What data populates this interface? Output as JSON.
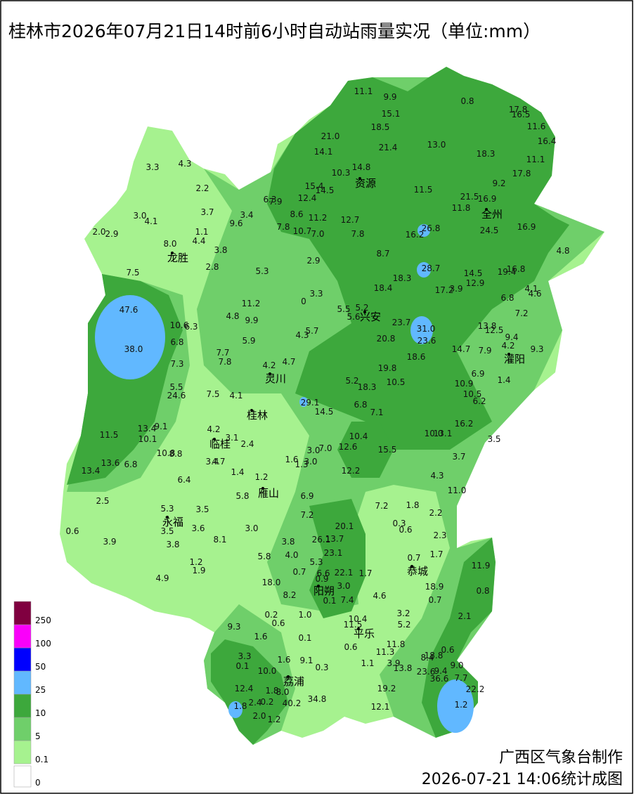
{
  "title": "桂林市2026年07月21日14时前6小时自动站雨量实况（单位:mm）",
  "legend": {
    "levels": [
      {
        "value": 0,
        "color": "#ffffff"
      },
      {
        "value": 0.1,
        "color": "#a6f28f"
      },
      {
        "value": 5,
        "color": "#6fcf6a"
      },
      {
        "value": 10,
        "color": "#3da83c"
      },
      {
        "value": 25,
        "color": "#61b8ff"
      },
      {
        "value": 50,
        "color": "#0000fe"
      },
      {
        "value": 100,
        "color": "#fa00fa"
      },
      {
        "value": 250,
        "color": "#800040"
      }
    ]
  },
  "counties": [
    "资源",
    "全州",
    "龙胜",
    "兴安",
    "灌阳",
    "灵川",
    "桂林",
    "临桂",
    "雁山",
    "永福",
    "阳朔",
    "恭城",
    "平乐",
    "荔浦"
  ],
  "stations": [
    "11.1",
    "9.9",
    "15.1",
    "18.5",
    "21.0",
    "14.1",
    "21.4",
    "10.3",
    "14.8",
    "15.4",
    "14.5",
    "12.4",
    "0.8",
    "17.8",
    "16.5",
    "11.6",
    "16.4",
    "13.0",
    "18.3",
    "11.1",
    "17.8",
    "9.2",
    "11.5",
    "21.5",
    "16.9",
    "11.8",
    "24.5",
    "16.9",
    "26.8",
    "16.2",
    "4.8",
    "3.3",
    "4.3",
    "2.2",
    "3.0",
    "4.1",
    "2.0",
    "2.9",
    "3.7",
    "1.1",
    "4.4",
    "8.0",
    "3.8",
    "2.8",
    "7.5",
    "6.3",
    "7.9",
    "3.4",
    "9.6",
    "8.6",
    "11.2",
    "12.7",
    "7.8",
    "10.7",
    "7.0",
    "7.8",
    "5.3",
    "2.9",
    "8.7",
    "28.7",
    "14.5",
    "19.4",
    "16.8",
    "12.9",
    "18.4",
    "18.3",
    "17.2",
    "3.9",
    "4.1",
    "4.6",
    "6.8",
    "7.2",
    "47.6",
    "11.2",
    "0",
    "3.3",
    "4.8",
    "9.9",
    "5.5",
    "5.2",
    "5.6",
    "23.7",
    "31.0",
    "13.8",
    "12.5",
    "9.4",
    "4.2",
    "9.3",
    "10.6",
    "6.3",
    "5.7",
    "4.3",
    "38.0",
    "6.8",
    "5.9",
    "20.8",
    "23.6",
    "14.7",
    "7.9",
    "7.7",
    "7.8",
    "4.7",
    "4.2",
    "7.3",
    "18.6",
    "19.8",
    "6.9",
    "1.4",
    "10.9",
    "10.5",
    "5.2",
    "18.3",
    "5.5",
    "10.5",
    "6.2",
    "24.6",
    "7.5",
    "4.1",
    "29.1",
    "14.5",
    "6.8",
    "7.1",
    "16.2",
    "13.4",
    "9.1",
    "4.2",
    "11.5",
    "10.1",
    "10.4",
    "10.0",
    "13.1",
    "3.5",
    "3.1",
    "10.8",
    "8.8",
    "2.4",
    "3.0",
    "7.0",
    "12.6",
    "15.5",
    "1.6",
    "1.3",
    "3.0",
    "3.7",
    "13.6",
    "6.8",
    "3.4",
    "4.7",
    "13.4",
    "1.4",
    "1.2",
    "12.2",
    "4.3",
    "6.4",
    "11.0",
    "2.5",
    "5.8",
    "6.9",
    "7.2",
    "1.8",
    "5.3",
    "3.5",
    "2.2",
    "7.2",
    "3.0",
    "20.1",
    "0.3",
    "0.6",
    "0.6",
    "3.6",
    "3.5",
    "2.3",
    "3.9",
    "3.8",
    "8.1",
    "3.8",
    "26.1",
    "13.7",
    "23.1",
    "4.0",
    "5.8",
    "0.7",
    "1.7",
    "5.3",
    "1.2",
    "1.9",
    "0.7",
    "6.6",
    "22.1",
    "1.7",
    "11.9",
    "0.9",
    "4.9",
    "18.0",
    "3.0",
    "18.9",
    "0.8",
    "8.2",
    "7.4",
    "0.1",
    "4.6",
    "0.7",
    "3.2",
    "0.2",
    "1.0",
    "10.4",
    "2.1",
    "0.6",
    "5.2",
    "9.3",
    "11.5",
    "1.6",
    "0.1",
    "11.8",
    "0.6",
    "0.6",
    "11.3",
    "3.3",
    "1.6",
    "9.1",
    "8.4",
    "18.8",
    "9.0",
    "0.1",
    "0.3",
    "1.1",
    "3.9",
    "13.8",
    "9.4",
    "23.6",
    "7.7",
    "10.0",
    "36.6",
    "22.2",
    "12.4",
    "1.8",
    "8.0",
    "19.2",
    "2.4",
    "0.2",
    "34.8",
    "1.8",
    "40.2",
    "1.2",
    "12.1",
    "2.0",
    "1.2"
  ],
  "footer": {
    "agency": "广西区气象台制作",
    "time": "2026-07-21 14:06统计成图"
  }
}
